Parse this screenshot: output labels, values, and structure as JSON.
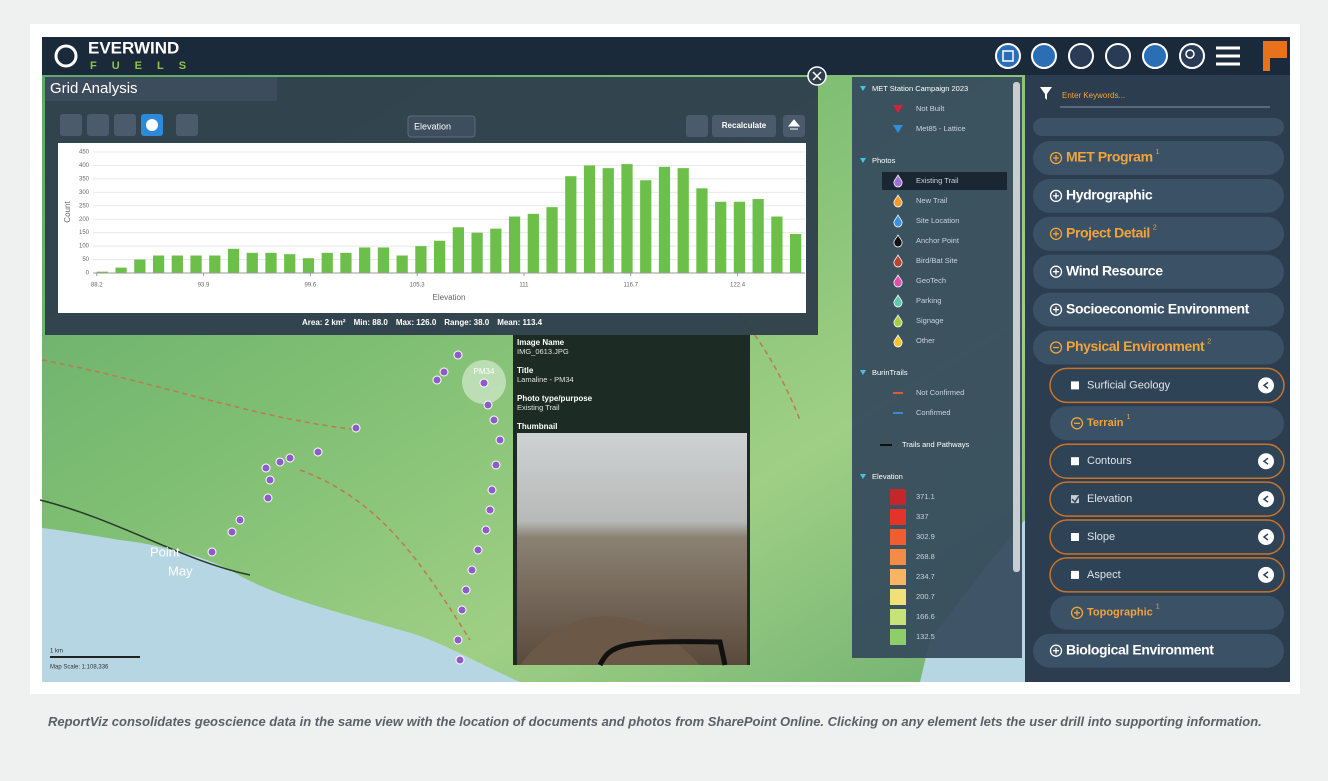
{
  "app": {
    "logo": "EVERWIND",
    "logo_sub": "FUELS"
  },
  "grid_analysis": {
    "title": "Grid Analysis",
    "layer": "Elevation",
    "button": "Recalculate",
    "stats": [
      "Area: 2 km²",
      "Min: 88.0",
      "Max: 126.0",
      "Range: 38.0",
      "Mean: 113.4"
    ]
  },
  "chart_data": {
    "type": "histogram",
    "xlabel": "Elevation",
    "ylabel": "Count",
    "bins": [
      88,
      89,
      90,
      91,
      92,
      93,
      94,
      95,
      96,
      97,
      98,
      99,
      100,
      101,
      102,
      103,
      104,
      105,
      106,
      107,
      108,
      109,
      110,
      111,
      112,
      113,
      114,
      115,
      116,
      117,
      118,
      119,
      120,
      121,
      122,
      123,
      124,
      125,
      126
    ],
    "values": [
      5,
      20,
      50,
      65,
      65,
      65,
      65,
      90,
      75,
      75,
      70,
      55,
      75,
      75,
      95,
      95,
      65,
      100,
      120,
      170,
      150,
      165,
      210,
      220,
      245,
      360,
      400,
      390,
      405,
      345,
      395,
      390,
      315,
      265,
      265,
      275,
      210,
      145
    ],
    "color": "#6cc04a",
    "xlim": [
      88,
      126
    ],
    "xticks": [
      88.2,
      93.9,
      99.6,
      105.3,
      111,
      116.7,
      122.4
    ],
    "ylim": [
      0,
      450
    ],
    "yticks": [
      0,
      50,
      100,
      150,
      200,
      250,
      300,
      350,
      400,
      450
    ],
    "grid": true
  },
  "popup": {
    "fields": [
      {
        "label": "Image Name",
        "value": "IMG_0613.JPG"
      },
      {
        "label": "Title",
        "value": "Lamaline - PM34"
      },
      {
        "label": "Photo type/purpose",
        "value": "Existing Trail"
      }
    ],
    "thumbnail_label": "Thumbnail"
  },
  "legend": {
    "groups": [
      {
        "title": "MET Station Campaign 2023",
        "items": [
          {
            "label": "Not Built",
            "symbol": "triangle",
            "color": "#d4213d"
          },
          {
            "label": "Met85 - Lattice",
            "symbol": "triangle",
            "color": "#2f8fd8"
          }
        ]
      },
      {
        "title": "Photos",
        "items": [
          {
            "label": "Existing Trail",
            "symbol": "drop",
            "color": "#a070d0",
            "selected": true
          },
          {
            "label": "New Trail",
            "symbol": "drop",
            "color": "#f39a2b"
          },
          {
            "label": "Site Location",
            "symbol": "drop",
            "color": "#3d8fe0"
          },
          {
            "label": "Anchor Point",
            "symbol": "drop",
            "color": "#111111"
          },
          {
            "label": "Bird/Bat Site",
            "symbol": "drop",
            "color": "#b5452f"
          },
          {
            "label": "GeoTech",
            "symbol": "drop",
            "color": "#e04ea8"
          },
          {
            "label": "Parking",
            "symbol": "drop",
            "color": "#5fc9a8"
          },
          {
            "label": "Signage",
            "symbol": "drop",
            "color": "#a6cf3f"
          },
          {
            "label": "Other",
            "symbol": "drop",
            "color": "#f2c530"
          }
        ]
      },
      {
        "title": "BurinTrails",
        "items": [
          {
            "label": "Not Confirmed",
            "symbol": "dash",
            "color": "#e2593a"
          },
          {
            "label": "Confirmed",
            "symbol": "dash",
            "color": "#3f86d6"
          }
        ]
      },
      {
        "items": [
          {
            "label": "Trails and Pathways",
            "symbol": "line",
            "color": "#111111"
          }
        ]
      },
      {
        "title": "Elevation",
        "items": [
          {
            "label": 371.1,
            "symbol": "swatch",
            "color": "#c4262c"
          },
          {
            "label": 337,
            "symbol": "swatch",
            "color": "#e3342a"
          },
          {
            "label": 302.9,
            "symbol": "swatch",
            "color": "#f15d31"
          },
          {
            "label": 268.8,
            "symbol": "swatch",
            "color": "#f68b48"
          },
          {
            "label": 234.7,
            "symbol": "swatch",
            "color": "#f9b562"
          },
          {
            "label": 200.7,
            "symbol": "swatch",
            "color": "#f3df78"
          },
          {
            "label": 166.6,
            "symbol": "swatch",
            "color": "#c8e27a"
          },
          {
            "label": 132.5,
            "symbol": "swatch",
            "color": "#8fcd69"
          }
        ]
      }
    ]
  },
  "layers": {
    "search_placeholder": "Enter Keywords...",
    "items": [
      {
        "label": "MET Program",
        "badge": 1,
        "kind": "group",
        "expanded": false,
        "accent": true
      },
      {
        "label": "Hydrographic",
        "kind": "group",
        "expanded": false
      },
      {
        "label": "Project Detail",
        "badge": 2,
        "kind": "group",
        "expanded": false,
        "accent": true
      },
      {
        "label": "Wind Resource",
        "kind": "group",
        "expanded": false
      },
      {
        "label": "Socioeconomic Environment",
        "kind": "group",
        "expanded": false
      },
      {
        "label": "Physical Environment",
        "badge": 2,
        "kind": "group",
        "expanded": true,
        "accent": true
      },
      {
        "label": "Surficial Geology",
        "kind": "layer",
        "checked": false
      },
      {
        "label": "Terrain",
        "badge": 1,
        "kind": "subgroup",
        "expanded": true,
        "accent": true
      },
      {
        "label": "Contours",
        "kind": "layer",
        "checked": false
      },
      {
        "label": "Elevation",
        "kind": "layer",
        "checked": true
      },
      {
        "label": "Slope",
        "kind": "layer",
        "checked": false
      },
      {
        "label": "Aspect",
        "kind": "layer",
        "checked": false
      },
      {
        "label": "Topographic",
        "badge": 1,
        "kind": "subgroup",
        "expanded": false,
        "accent": true
      },
      {
        "label": "Biological Environment",
        "kind": "group",
        "expanded": false
      }
    ]
  },
  "map": {
    "labels": [
      "Point",
      "May",
      "PM34"
    ],
    "scale_bar": "1 km",
    "scale": "Map Scale: 1:108,336"
  },
  "caption": "ReportViz consolidates geoscience data in the same view with the location of documents and photos from SharePoint Online.  Clicking on any element lets the user drill into supporting information."
}
